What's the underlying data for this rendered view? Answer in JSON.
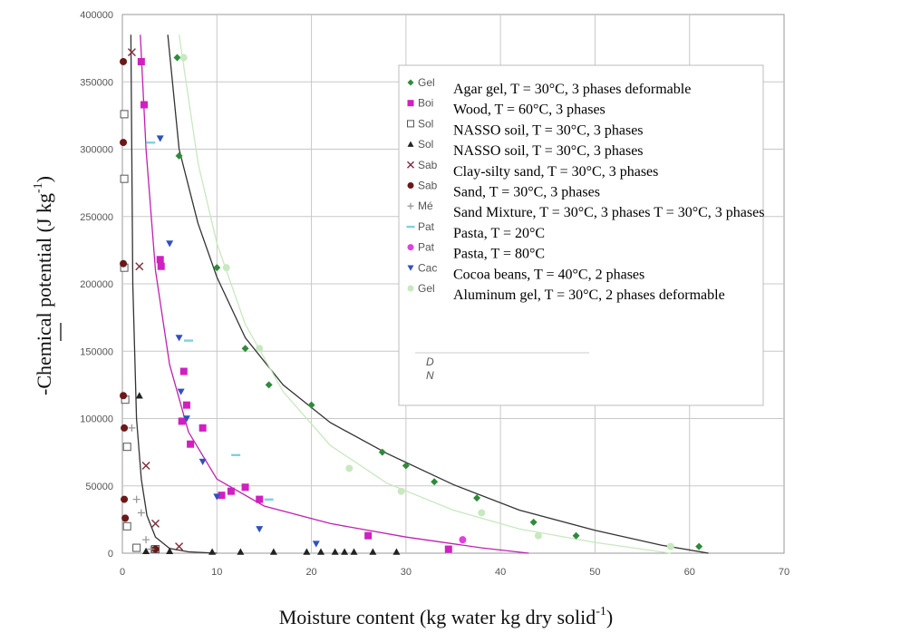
{
  "chart_data": {
    "type": "scatter",
    "xlabel": "Moisture content (kg water kg dry solid",
    "xlabel_sup": "-1",
    "xlabel_close": ")",
    "ylabel": "-Chemical potential (J kg",
    "ylabel_sup": "-1",
    "ylabel_close": ")",
    "xlim": [
      0,
      70
    ],
    "ylim": [
      0,
      400000
    ],
    "x_ticks": [
      "0",
      "10",
      "20",
      "30",
      "40",
      "50",
      "60",
      "70"
    ],
    "x_tick_values": [
      0,
      10,
      20,
      30,
      40,
      50,
      60,
      70
    ],
    "y_ticks": [
      "0",
      "50000",
      "100000",
      "150000",
      "200000",
      "250000",
      "300000",
      "350000",
      "400000"
    ],
    "y_tick_values": [
      0,
      50000,
      100000,
      150000,
      200000,
      250000,
      300000,
      350000,
      400000
    ],
    "grid": true,
    "legend_position": "top-right",
    "legend_note_lines": [
      "D",
      "N"
    ],
    "series": [
      {
        "name": "Agar gel, T = 30°C, 3 phases deformable",
        "short": "Gel",
        "marker": "diamond",
        "color": "#2e8b3a",
        "x": [
          5.8,
          6.0,
          10.0,
          13.0,
          15.5,
          20.0,
          27.5,
          30.0,
          33.0,
          37.5,
          43.5,
          48.0,
          61.0
        ],
        "y": [
          368000,
          295000,
          212000,
          152000,
          125000,
          110000,
          75000,
          65000,
          53000,
          41000,
          23000,
          13000,
          5000
        ]
      },
      {
        "name": "Wood, T = 60°C, 3 phases",
        "short": "Boi",
        "marker": "square",
        "color": "#d020c0",
        "x": [
          2.0,
          2.3,
          4.0,
          4.1,
          6.5,
          6.8,
          6.3,
          7.2,
          8.5,
          10.5,
          11.5,
          13.0,
          14.5,
          26.0,
          34.5
        ],
        "y": [
          365000,
          333000,
          218000,
          213000,
          135000,
          110000,
          98000,
          81000,
          93000,
          43000,
          46000,
          49000,
          40000,
          13000,
          3000
        ]
      },
      {
        "name": "NASSO soil, T = 30°C, 3 phases",
        "short": "Sol",
        "marker": "square-open",
        "color": "#555555",
        "x": [
          0.2,
          0.2,
          0.2,
          0.3,
          0.5,
          0.5,
          1.5,
          3.5
        ],
        "y": [
          326000,
          278000,
          212000,
          114000,
          79000,
          20000,
          4000,
          3000
        ]
      },
      {
        "name": "NASSO soil, T = 30°C, 3 phases",
        "short": "Sol",
        "marker": "triangle",
        "color": "#222222",
        "x": [
          1.8,
          2.5,
          5.0,
          9.5,
          12.5,
          16.0,
          19.5,
          21.0,
          22.5,
          23.5,
          24.5,
          26.5,
          29.0
        ],
        "y": [
          117000,
          1500,
          1500,
          1000,
          1000,
          1000,
          1000,
          1000,
          1000,
          1000,
          1000,
          1000,
          1000
        ]
      },
      {
        "name": "Clay-silty sand, T = 30°C, 3 phases",
        "short": "Sab",
        "marker": "x",
        "color": "#7a2e3a",
        "x": [
          1.0,
          1.8,
          2.5,
          3.5,
          6.0
        ],
        "y": [
          372000,
          213000,
          65000,
          22000,
          5000
        ]
      },
      {
        "name": "Sand, T = 30°C, 3 phases",
        "short": "Sab",
        "marker": "circle",
        "color": "#6a1818",
        "x": [
          0.1,
          0.1,
          0.1,
          0.1,
          0.2,
          0.2,
          0.3,
          3.5
        ],
        "y": [
          365000,
          305000,
          215000,
          117000,
          93000,
          40000,
          26000,
          3000
        ]
      },
      {
        "name": "Sand Mixture, T = 30°C, 3 phases T = 30°C, 3 phases",
        "short": "Mé",
        "marker": "plus",
        "color": "#999999",
        "x": [
          1.0,
          1.5,
          2.0,
          2.5,
          3.0
        ],
        "y": [
          93000,
          40000,
          30000,
          10000,
          3000
        ]
      },
      {
        "name": "Pasta, T = 20°C",
        "short": "Pat",
        "marker": "dash",
        "color": "#7fd0e0",
        "x": [
          3.0,
          7.0,
          12.0,
          15.5
        ],
        "y": [
          305000,
          158000,
          73000,
          40000
        ]
      },
      {
        "name": "Pasta, T = 80°C",
        "short": "Pat",
        "marker": "circle",
        "color": "#e040e0",
        "x": [
          36.0
        ],
        "y": [
          10000
        ]
      },
      {
        "name": "Cocoa beans, T = 40°C, 2 phases",
        "short": "Cac",
        "marker": "triangle-down",
        "color": "#3050c0",
        "x": [
          4.0,
          5.0,
          6.0,
          6.2,
          6.8,
          8.5,
          10.0,
          14.5,
          20.5
        ],
        "y": [
          308000,
          230000,
          160000,
          120000,
          100000,
          68000,
          42000,
          18000,
          7000
        ]
      },
      {
        "name": "Aluminum gel, T = 30°C, 2 phases deformable",
        "short": "Gel",
        "marker": "circle",
        "color": "#c8e8c0",
        "x": [
          6.5,
          11.0,
          14.5,
          24.0,
          29.5,
          38.0,
          44.0,
          58.0
        ],
        "y": [
          368000,
          212000,
          152000,
          63000,
          46000,
          30000,
          13000,
          5000
        ]
      }
    ],
    "curves": [
      {
        "color": "#333333",
        "x": [
          0.9,
          1.1,
          1.5,
          2.0,
          2.6,
          3.5,
          5.0,
          7.0,
          10.0
        ],
        "y": [
          385000,
          200000,
          100000,
          55000,
          28000,
          12000,
          3500,
          1000,
          0
        ]
      },
      {
        "color": "#c020b0",
        "x": [
          1.9,
          2.5,
          3.5,
          5.0,
          7.0,
          10.0,
          15.0,
          22.0,
          30.0,
          38.0,
          43.0
        ],
        "y": [
          385000,
          300000,
          210000,
          140000,
          90000,
          55000,
          35000,
          22000,
          12000,
          4000,
          0
        ]
      },
      {
        "color": "#333333",
        "x": [
          4.8,
          6.0,
          8.0,
          10.0,
          13.0,
          17.0,
          22.0,
          28.0,
          35.0,
          42.0,
          50.0,
          57.0,
          62.0
        ],
        "y": [
          385000,
          300000,
          245000,
          205000,
          160000,
          125000,
          97000,
          74000,
          51000,
          32000,
          17000,
          6000,
          0
        ]
      },
      {
        "color": "#c8e8c0",
        "x": [
          6.0,
          8.0,
          10.0,
          13.0,
          17.0,
          22.0,
          28.0,
          35.0,
          42.0,
          50.0,
          58.0
        ],
        "y": [
          385000,
          290000,
          230000,
          170000,
          120000,
          80000,
          52000,
          32000,
          18000,
          8000,
          0
        ]
      }
    ]
  }
}
